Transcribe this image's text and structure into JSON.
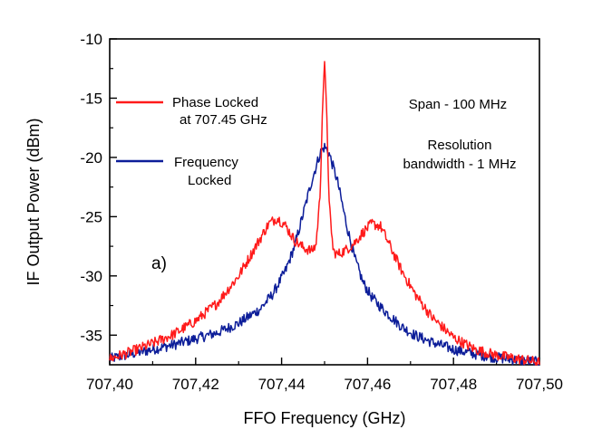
{
  "chart_data": {
    "type": "line",
    "title": "",
    "xlabel": "FFO Frequency (GHz)",
    "ylabel": "IF Output Power (dBm)",
    "xlim": [
      707.4,
      707.5
    ],
    "ylim": [
      -37.5,
      -10
    ],
    "x_ticks": [
      707.4,
      707.42,
      707.44,
      707.46,
      707.48,
      707.5
    ],
    "x_tick_labels": [
      "707,40",
      "707,42",
      "707,44",
      "707,46",
      "707,48",
      "707,50"
    ],
    "y_ticks": [
      -35,
      -30,
      -25,
      -20,
      -15,
      -10
    ],
    "y_tick_labels": [
      "-35",
      "-30",
      "-25",
      "-20",
      "-15",
      "-10"
    ],
    "grid": false,
    "legend_position": "top-left",
    "series": [
      {
        "name": "Phase Locked at 707.45 GHz",
        "legend_lines": [
          "Phase Locked",
          "at 707.45 GHz"
        ],
        "color": "#ff1a1a",
        "x": [
          707.4,
          707.405,
          707.41,
          707.415,
          707.42,
          707.425,
          707.43,
          707.434,
          707.437,
          707.439,
          707.441,
          707.443,
          707.445,
          707.447,
          707.448,
          707.449,
          707.4495,
          707.45,
          707.4505,
          707.451,
          707.452,
          707.453,
          707.455,
          707.457,
          707.459,
          707.461,
          707.463,
          707.465,
          707.468,
          707.471,
          707.475,
          707.48,
          707.485,
          707.49,
          707.495,
          707.5
        ],
        "y": [
          -37.0,
          -36.4,
          -35.7,
          -34.9,
          -33.8,
          -32.3,
          -30.0,
          -27.5,
          -25.6,
          -25.1,
          -25.8,
          -27.0,
          -27.6,
          -27.9,
          -27.4,
          -23.0,
          -16.0,
          -12.0,
          -16.0,
          -23.5,
          -27.9,
          -28.2,
          -27.8,
          -27.2,
          -26.3,
          -25.6,
          -25.8,
          -27.3,
          -29.6,
          -31.5,
          -33.5,
          -35.2,
          -36.2,
          -36.7,
          -37.0,
          -37.3
        ]
      },
      {
        "name": "Frequency Locked",
        "legend_lines": [
          "Frequency",
          "Locked"
        ],
        "color": "#0c1d99",
        "x": [
          707.4,
          707.405,
          707.41,
          707.415,
          707.42,
          707.425,
          707.43,
          707.435,
          707.438,
          707.441,
          707.443,
          707.445,
          707.447,
          707.449,
          707.45,
          707.451,
          707.453,
          707.455,
          707.457,
          707.459,
          707.461,
          707.463,
          707.465,
          707.468,
          707.471,
          707.475,
          707.48,
          707.485,
          707.49,
          707.495,
          707.5
        ],
        "y": [
          -37.0,
          -36.6,
          -36.2,
          -35.8,
          -35.3,
          -34.8,
          -34.0,
          -32.8,
          -31.5,
          -29.5,
          -27.5,
          -24.8,
          -22.0,
          -19.6,
          -19.1,
          -19.6,
          -22.0,
          -25.5,
          -28.5,
          -30.6,
          -31.8,
          -32.6,
          -33.3,
          -34.3,
          -35.0,
          -35.6,
          -36.2,
          -36.6,
          -36.9,
          -37.1,
          -37.3
        ]
      }
    ],
    "annotations": [
      {
        "id": "span",
        "text": "Span - 100 MHz"
      },
      {
        "id": "resolution-line1",
        "text": "Resolution"
      },
      {
        "id": "resolution-line2",
        "text": "bandwidth - 1 MHz"
      },
      {
        "id": "panel-label",
        "text": "a)"
      }
    ]
  }
}
